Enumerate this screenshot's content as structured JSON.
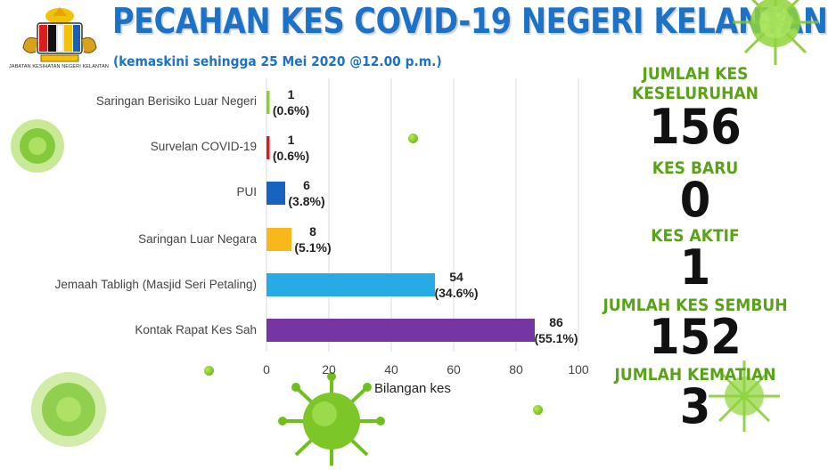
{
  "header": {
    "department": "JABATAN KESIHATAN NEGERI KELANTAN",
    "title": "PECAHAN KES COVID-19 NEGERI KELANTAN",
    "subtitle": "(kemaskini sehingga 25 Mei 2020 @12.00 p.m.)"
  },
  "chart_data": {
    "type": "bar",
    "orientation": "horizontal",
    "categories": [
      "Saringan Berisiko Luar Negeri",
      "Survelan COVID-19",
      "PUI",
      "Saringan Luar Negara",
      "Jemaah Tabligh (Masjid Seri Petaling)",
      "Kontak Rapat Kes Sah"
    ],
    "values": [
      1,
      1,
      6,
      8,
      54,
      86
    ],
    "data_labels": [
      [
        "1",
        "(0.6%)"
      ],
      [
        "1",
        "(0.6%)"
      ],
      [
        "6",
        "(3.8%)"
      ],
      [
        "8",
        "(5.1%)"
      ],
      [
        "54",
        "(34.6%)"
      ],
      [
        "86",
        "(55.1%)"
      ]
    ],
    "colors": [
      "#8bd12f",
      "#e5161d",
      "#1565c0",
      "#f8b81c",
      "#27abe4",
      "#7535a3"
    ],
    "xlabel": "Bilangan kes",
    "xlim": [
      0,
      100
    ],
    "xticks": [
      "0",
      "20",
      "40",
      "60",
      "80",
      "100"
    ],
    "grid": "vertical"
  },
  "stats": [
    {
      "label_lines": [
        "JUMLAH KES",
        "KESELURUHAN"
      ],
      "value": "156"
    },
    {
      "label_lines": [
        "KES BARU"
      ],
      "value": "0"
    },
    {
      "label_lines": [
        "KES AKTIF"
      ],
      "value": "1"
    },
    {
      "label_lines": [
        "JUMLAH KES SEMBUH"
      ],
      "value": "152"
    },
    {
      "label_lines": [
        "JUMLAH KEMATIAN"
      ],
      "value": "3"
    }
  ],
  "colors": {
    "title": "#1b72c7",
    "stat_label": "#5aa21a",
    "virus": "#7cc628"
  }
}
